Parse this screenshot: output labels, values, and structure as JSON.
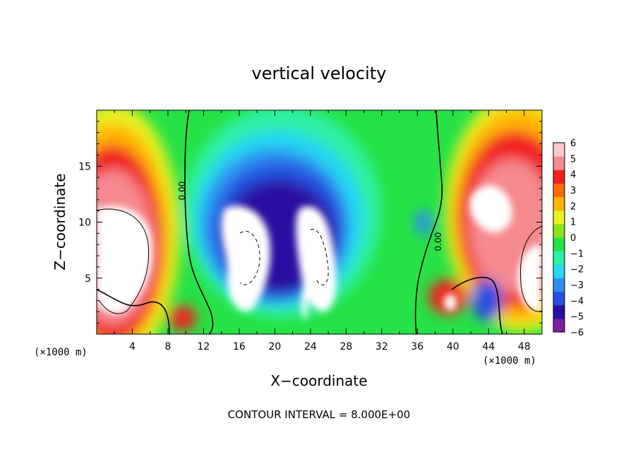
{
  "chart_data": {
    "type": "heatmap",
    "title": "vertical velocity",
    "xlabel": "X−coordinate",
    "ylabel": "Z−coordinate",
    "x_unit": "(×1000 m)",
    "x_unit_right": "(×1000 m)",
    "xlim": [
      0,
      50
    ],
    "ylim": [
      0,
      20
    ],
    "x_ticks": [
      4,
      8,
      12,
      16,
      20,
      24,
      28,
      32,
      36,
      40,
      44,
      48
    ],
    "y_ticks": [
      5,
      10,
      15
    ],
    "colorbar": {
      "ticks": [
        6,
        5,
        4,
        3,
        2,
        1,
        0,
        -1,
        -2,
        -3,
        -4,
        -5,
        -6
      ],
      "range": [
        -6,
        6
      ],
      "colors": [
        "#7a1fa0",
        "#2a10a0",
        "#2850e0",
        "#2e8ef0",
        "#26d6f2",
        "#2df0a6",
        "#26e246",
        "#8ee21c",
        "#e8f020",
        "#ffb400",
        "#ff6a00",
        "#f02020",
        "#f58a90",
        "#ffc8cc"
      ]
    },
    "contour_labels": [
      "0.00",
      "0.00"
    ],
    "contour_interval": 8.0,
    "features": [
      {
        "kind": "updraft",
        "x": 2.0,
        "z": 8.0,
        "w": 6
      },
      {
        "kind": "updraft",
        "x": 46.0,
        "z": 10.0,
        "w": 6
      },
      {
        "kind": "downdraft",
        "x": 18.0,
        "z": 7.5,
        "w": -6
      },
      {
        "kind": "downdraft",
        "x": 26.0,
        "z": 7.0,
        "w": -6
      },
      {
        "kind": "updraft",
        "x": 39.5,
        "z": 3.0,
        "w": 5
      },
      {
        "kind": "updraft",
        "x": 9.8,
        "z": 1.5,
        "w": 5
      },
      {
        "kind": "downdraft",
        "x": 43.5,
        "z": 2.8,
        "w": -4
      }
    ]
  },
  "footer": {
    "contour_interval_text": "CONTOUR INTERVAL = 8.000E+00"
  }
}
